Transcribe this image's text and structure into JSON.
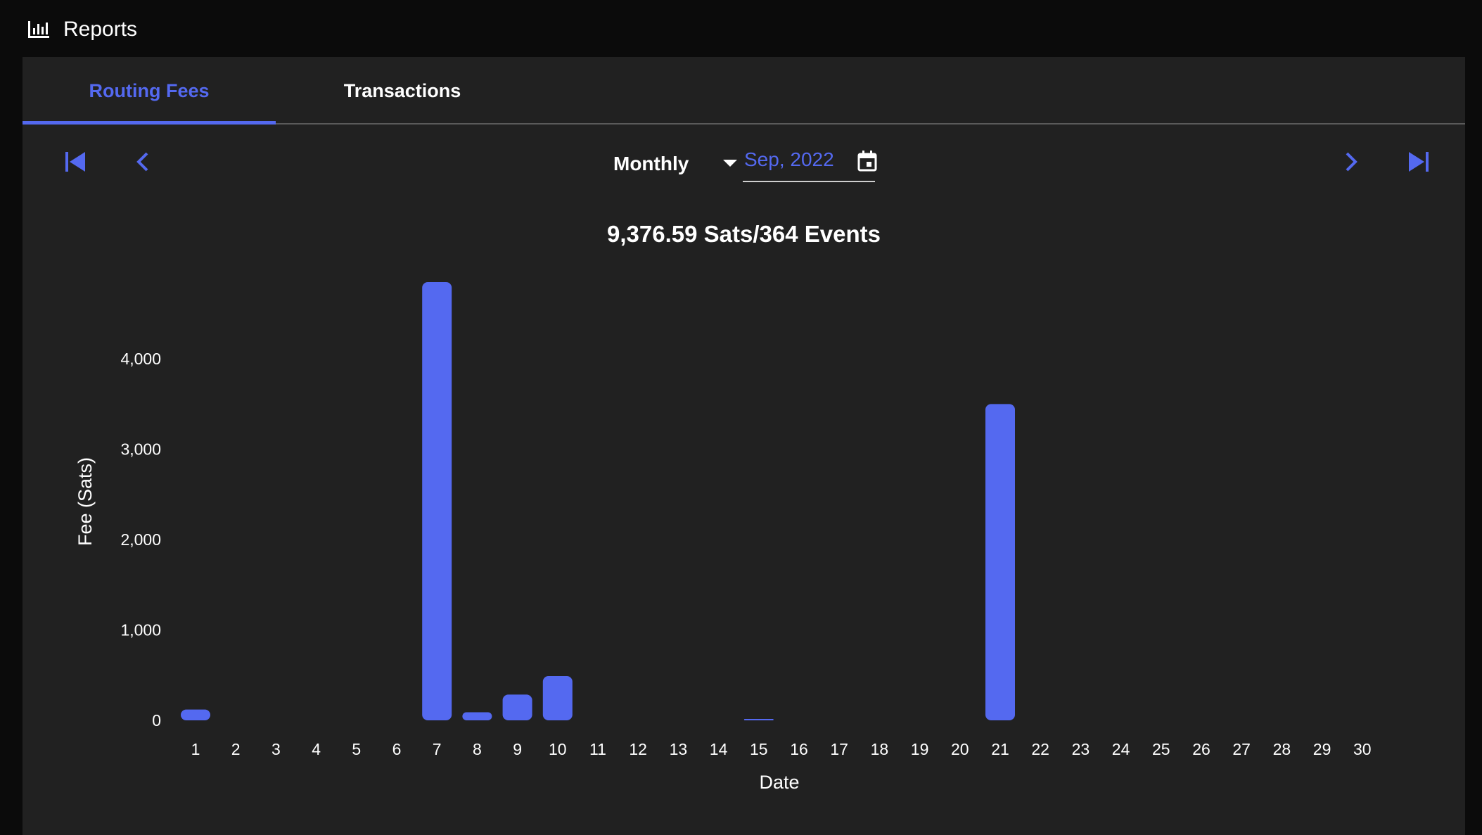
{
  "header": {
    "title": "Reports",
    "icon": "bar-chart-icon"
  },
  "tabs": [
    {
      "label": "Routing Fees",
      "active": true
    },
    {
      "label": "Transactions",
      "active": false
    }
  ],
  "controls": {
    "period": "Monthly",
    "date": "Sep, 2022"
  },
  "summary": "9,376.59 Sats/364 Events",
  "colors": {
    "accent": "#5469f0",
    "background": "#212121",
    "page": "#0b0b0b"
  },
  "chart_data": {
    "type": "bar",
    "categories": [
      "1",
      "2",
      "3",
      "4",
      "5",
      "6",
      "7",
      "8",
      "9",
      "10",
      "11",
      "12",
      "13",
      "14",
      "15",
      "16",
      "17",
      "18",
      "19",
      "20",
      "21",
      "22",
      "23",
      "24",
      "25",
      "26",
      "27",
      "28",
      "29",
      "30"
    ],
    "values": [
      120,
      0,
      0,
      0,
      0,
      0,
      4850,
      90,
      285,
      490,
      0,
      0,
      0,
      0,
      8,
      0,
      0,
      0,
      0,
      0,
      3500,
      0,
      0,
      0,
      0,
      0,
      0,
      0,
      0,
      0
    ],
    "xlabel": "Date",
    "ylabel": "Fee (Sats)",
    "yticks": [
      0,
      1000,
      2000,
      3000,
      4000
    ],
    "ytick_labels": [
      "0",
      "1,000",
      "2,000",
      "3,000",
      "4,000"
    ],
    "ylim": [
      0,
      4850
    ],
    "grid": false,
    "color": "#5469f0"
  }
}
